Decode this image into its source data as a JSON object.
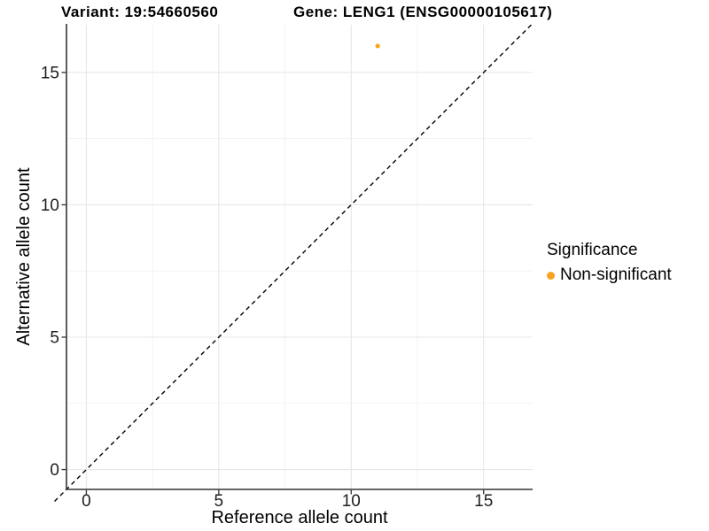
{
  "header": {
    "variant_title": "Variant: 19:54660560",
    "gene_title": "Gene: LENG1 (ENSG00000105617)"
  },
  "legend": {
    "title": "Significance",
    "items": [
      {
        "label": "Non-significant",
        "color": "#F9A41F"
      }
    ]
  },
  "chart_data": {
    "type": "scatter",
    "title": "Variant: 19:54660560 / Gene: LENG1 (ENSG00000105617)",
    "xlabel": "Reference allele count",
    "ylabel": "Alternative allele count",
    "xlim": [
      -0.75,
      16.85
    ],
    "ylim": [
      -0.75,
      16.8
    ],
    "x_ticks": [
      0,
      5,
      10,
      15
    ],
    "y_ticks": [
      0,
      5,
      10,
      15
    ],
    "x_minor_ticks": [
      2.5,
      7.5,
      12.5
    ],
    "y_minor_ticks": [
      2.5,
      7.5,
      12.5
    ],
    "grid": "major and minor gridlines, light grey on white panel",
    "legend_position": "right",
    "series": [
      {
        "name": "Non-significant",
        "color": "#F9A41F",
        "point_radius": 2.6,
        "points": [
          [
            11,
            16
          ]
        ]
      }
    ],
    "reference_line": {
      "kind": "identity",
      "equation": "y = x",
      "style": "dashed",
      "color": "#000000",
      "x_start": -1.2,
      "x_end": 16.8
    }
  },
  "colors": {
    "background": "#FFFFFF",
    "grid_major": "#E7E7E7",
    "grid_minor": "#F3F3F3",
    "axis_line": "#333333",
    "tick_mark": "#333333",
    "tick_label": "#1F1F1F",
    "point": "#F9A41F",
    "dashed_line": "#000000"
  }
}
